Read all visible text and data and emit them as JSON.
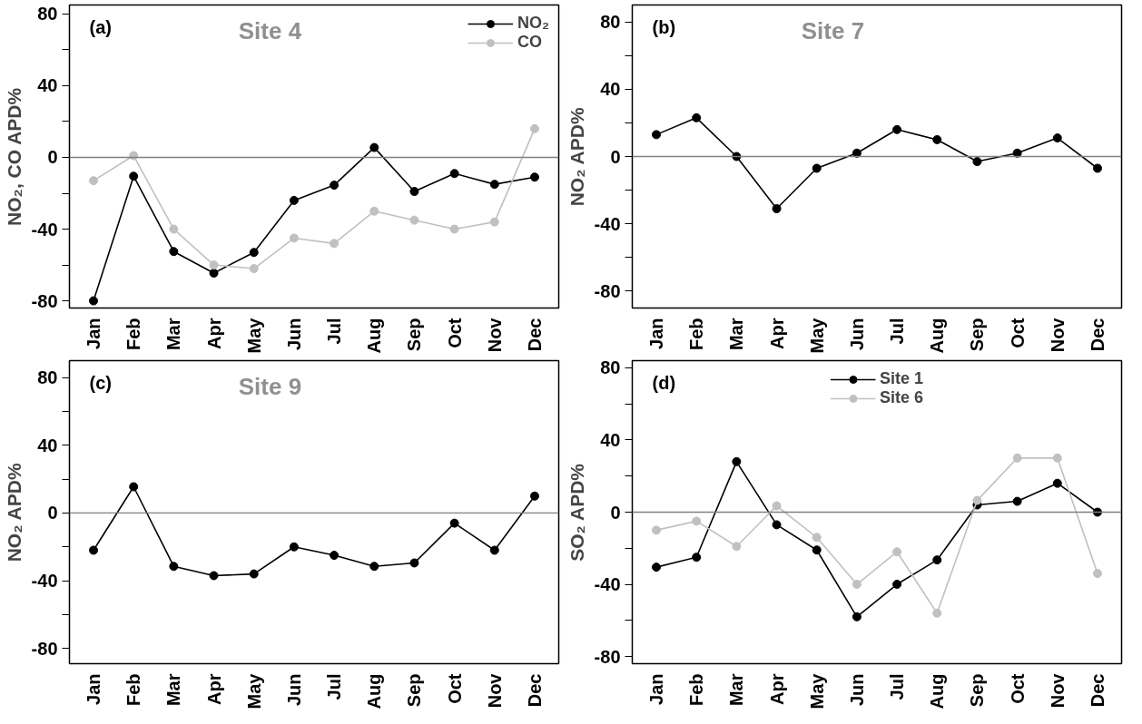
{
  "chart_data": [
    {
      "type": "line",
      "title": "Site 4",
      "annotations": [
        "(a)"
      ],
      "ylabel": "NO₂, CO APD%",
      "categories": [
        "Jan",
        "Feb",
        "Mar",
        "Apr",
        "May",
        "Jun",
        "Jul",
        "Aug",
        "Sep",
        "Oct",
        "Nov",
        "Dec"
      ],
      "ylim": [
        -84,
        85
      ],
      "yticks": [
        -80,
        {
          "value": -60,
          "label": null
        },
        -40,
        {
          "value": -20,
          "label": null
        },
        0,
        {
          "value": 20,
          "label": null
        },
        40,
        {
          "value": 60,
          "label": null
        },
        80
      ],
      "marker": "circle",
      "grid": false,
      "legend": "top right",
      "ref_lines": [
        {
          "axis": "y",
          "value": 0,
          "color": "#808080"
        }
      ],
      "series": [
        {
          "name": "NO₂",
          "color": "#000000",
          "values": [
            -80,
            -10.5,
            -52.5,
            -64.5,
            -53,
            -24,
            -15.5,
            5.5,
            -19,
            -9,
            -15,
            -11
          ]
        },
        {
          "name": "CO",
          "color": "#c0c0c0",
          "values": [
            -13,
            1,
            -40,
            -60,
            -62,
            -45,
            -48,
            -30,
            -35,
            -40,
            -36,
            16
          ]
        }
      ]
    },
    {
      "type": "line",
      "title": "Site 7",
      "annotations": [
        "(b)"
      ],
      "ylabel": "NO₂ APD%",
      "categories": [
        "Jan",
        "Feb",
        "Mar",
        "Apr",
        "May",
        "Jun",
        "Jul",
        "Aug",
        "Sep",
        "Oct",
        "Nov",
        "Dec"
      ],
      "ylim": [
        -90,
        90
      ],
      "yticks": [
        -80,
        {
          "value": -60,
          "label": null
        },
        -40,
        {
          "value": -20,
          "label": null
        },
        0,
        {
          "value": 20,
          "label": null
        },
        40,
        {
          "value": 60,
          "label": null
        },
        80
      ],
      "marker": "circle",
      "grid": false,
      "ref_lines": [
        {
          "axis": "y",
          "value": 0,
          "color": "#808080"
        }
      ],
      "series": [
        {
          "color": "#000000",
          "values": [
            13,
            23,
            0,
            -31,
            -7,
            2,
            16,
            10,
            -3,
            2,
            11,
            -7
          ]
        }
      ]
    },
    {
      "type": "line",
      "title": "Site 9",
      "annotations": [
        "(c)"
      ],
      "ylabel": "NO₂ APD%",
      "categories": [
        "Jan",
        "Feb",
        "Mar",
        "Apr",
        "May",
        "Jun",
        "Jul",
        "Aug",
        "Sep",
        "Oct",
        "Nov",
        "Dec"
      ],
      "ylim": [
        -89,
        90
      ],
      "yticks": [
        -80,
        {
          "value": -60,
          "label": null
        },
        -40,
        {
          "value": -20,
          "label": null
        },
        0,
        {
          "value": 20,
          "label": null
        },
        40,
        {
          "value": 60,
          "label": null
        },
        80
      ],
      "marker": "circle",
      "grid": false,
      "ref_lines": [
        {
          "axis": "y",
          "value": 0,
          "color": "#808080"
        }
      ],
      "series": [
        {
          "color": "#000000",
          "values": [
            -22,
            15.5,
            -31.5,
            -37,
            -36,
            -20,
            -25,
            -31.5,
            -29.5,
            -6,
            -22,
            10
          ]
        }
      ]
    },
    {
      "type": "line",
      "annotations": [
        "(d)"
      ],
      "ylabel": "SO₂ APD%",
      "categories": [
        "Jan",
        "Feb",
        "Mar",
        "Apr",
        "May",
        "Jun",
        "Jul",
        "Aug",
        "Sep",
        "Oct",
        "Nov",
        "Dec"
      ],
      "ylim": [
        -84,
        84
      ],
      "yticks": [
        -80,
        {
          "value": -60,
          "label": null
        },
        -40,
        {
          "value": -20,
          "label": null
        },
        0,
        {
          "value": 20,
          "label": null
        },
        40,
        {
          "value": 60,
          "label": null
        },
        80
      ],
      "marker": "circle",
      "grid": false,
      "legend": "top",
      "ref_lines": [
        {
          "axis": "y",
          "value": 0,
          "color": "#808080"
        }
      ],
      "series": [
        {
          "name": "Site 1",
          "color": "#000000",
          "values": [
            -30.5,
            -25,
            28,
            -7,
            -21,
            -58,
            -40,
            -26.5,
            4,
            6,
            16,
            0
          ]
        },
        {
          "name": "Site 6",
          "color": "#c0c0c0",
          "values": [
            -10,
            -5,
            -19,
            3.5,
            -14,
            -40,
            -22,
            -56,
            6.5,
            30,
            30,
            -34
          ]
        }
      ]
    }
  ]
}
